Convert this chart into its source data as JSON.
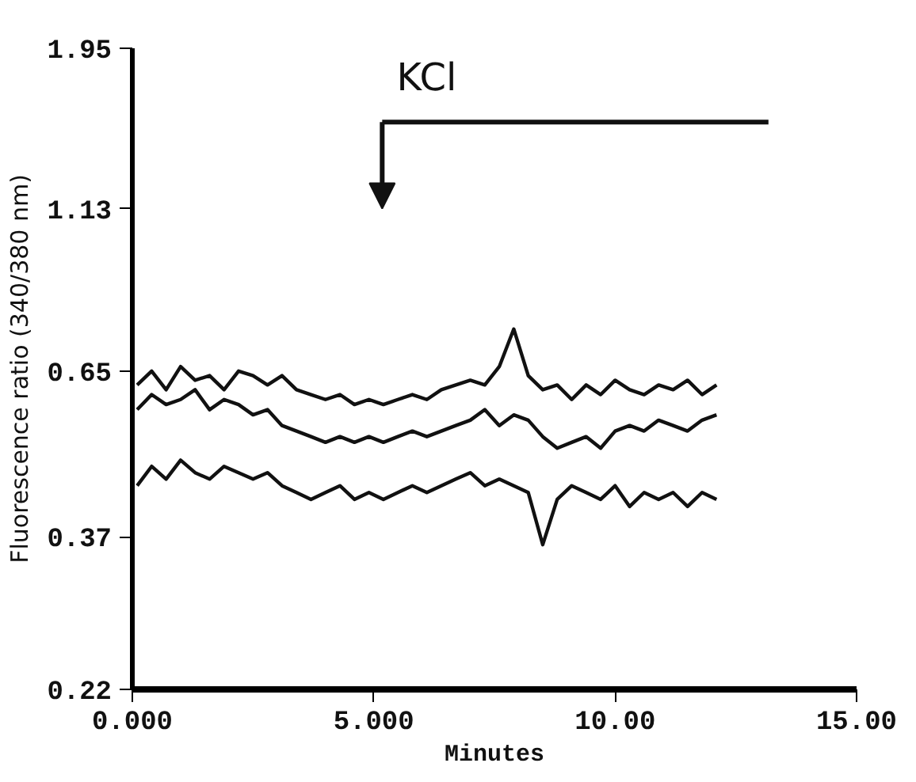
{
  "chart_data": {
    "type": "line",
    "xlabel": "Minutes",
    "ylabel": "Fluorescence ratio (340/380 nm)",
    "xlim": [
      0,
      15
    ],
    "xticks": [
      {
        "value": 0,
        "label": "0.000"
      },
      {
        "value": 5,
        "label": "5.000"
      },
      {
        "value": 10,
        "label": "10.00"
      },
      {
        "value": 15,
        "label": "15.00"
      }
    ],
    "ylim": [
      0.22,
      1.95
    ],
    "yticks": [
      0.22,
      0.37,
      0.65,
      1.13,
      1.95
    ],
    "log": "y",
    "grid": false,
    "x": [
      0.1,
      0.4,
      0.7,
      1.0,
      1.3,
      1.6,
      1.9,
      2.2,
      2.5,
      2.8,
      3.1,
      3.4,
      3.7,
      4.0,
      4.3,
      4.6,
      4.9,
      5.2,
      5.5,
      5.8,
      6.1,
      6.4,
      6.7,
      7.0,
      7.3,
      7.6,
      7.9,
      8.2,
      8.5,
      8.8,
      9.1,
      9.4,
      9.7,
      10.0,
      10.3,
      10.6,
      10.9,
      11.2,
      11.5,
      11.8,
      12.1
    ],
    "series": [
      {
        "color": "#111111",
        "values": [
          0.62,
          0.65,
          0.61,
          0.66,
          0.63,
          0.64,
          0.61,
          0.65,
          0.64,
          0.62,
          0.64,
          0.61,
          0.6,
          0.59,
          0.6,
          0.58,
          0.59,
          0.58,
          0.59,
          0.6,
          0.59,
          0.61,
          0.62,
          0.63,
          0.62,
          0.66,
          0.75,
          0.64,
          0.61,
          0.62,
          0.59,
          0.62,
          0.6,
          0.63,
          0.61,
          0.6,
          0.62,
          0.61,
          0.63,
          0.6,
          0.62
        ]
      },
      {
        "color": "#111111",
        "values": [
          0.57,
          0.6,
          0.58,
          0.59,
          0.61,
          0.57,
          0.59,
          0.58,
          0.56,
          0.57,
          0.54,
          0.53,
          0.52,
          0.51,
          0.52,
          0.51,
          0.52,
          0.51,
          0.52,
          0.53,
          0.52,
          0.53,
          0.54,
          0.55,
          0.57,
          0.54,
          0.56,
          0.55,
          0.52,
          0.5,
          0.51,
          0.52,
          0.5,
          0.53,
          0.54,
          0.53,
          0.55,
          0.54,
          0.53,
          0.55,
          0.56
        ]
      },
      {
        "color": "#111111",
        "values": [
          0.44,
          0.47,
          0.45,
          0.48,
          0.46,
          0.45,
          0.47,
          0.46,
          0.45,
          0.46,
          0.44,
          0.43,
          0.42,
          0.43,
          0.44,
          0.42,
          0.43,
          0.42,
          0.43,
          0.44,
          0.43,
          0.44,
          0.45,
          0.46,
          0.44,
          0.45,
          0.44,
          0.43,
          0.36,
          0.42,
          0.44,
          0.43,
          0.42,
          0.44,
          0.41,
          0.43,
          0.42,
          0.43,
          0.41,
          0.43,
          0.42
        ]
      }
    ],
    "annotations": [
      "KCl"
    ]
  }
}
